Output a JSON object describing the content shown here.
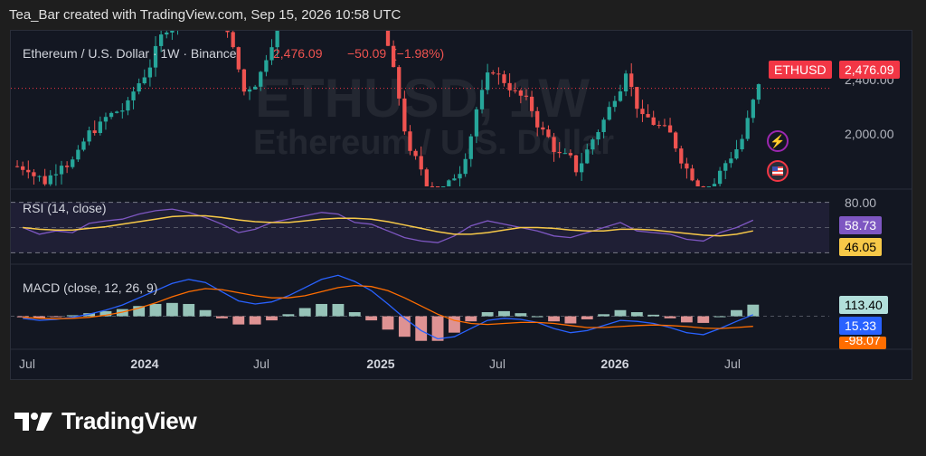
{
  "header": {
    "attribution": "Tea_Bar created with TradingView.com, Sep 15, 2026 10:58 UTC"
  },
  "legend": {
    "symbol_line": "Ethereum / U.S. Dollar · 1W · Binance",
    "price": "2,476.09",
    "change": "−50.09",
    "change_pct": "(−1.98%)"
  },
  "watermark": {
    "ticker": "ETHUSD, 1W",
    "name": "Ethereum / U.S. Dollar"
  },
  "price_pane": {
    "symbol_tag": "ETHUSD",
    "last_price_tag": "2,476.09",
    "y_labels": [
      "2,400.00",
      "2,000.00"
    ]
  },
  "rsi_pane": {
    "title": "RSI (14, close)",
    "level_label": "80.00",
    "rsi_value": "58.73",
    "ma_value": "46.05"
  },
  "macd_pane": {
    "title": "MACD (close, 12, 26, 9)",
    "hist_value": "113.40",
    "macd_value": "15.33",
    "signal_value": "-98.07"
  },
  "x_axis": [
    {
      "label": "Jul",
      "bold": false
    },
    {
      "label": "2024",
      "bold": true
    },
    {
      "label": "Jul",
      "bold": false
    },
    {
      "label": "2025",
      "bold": true
    },
    {
      "label": "Jul",
      "bold": false
    },
    {
      "label": "2026",
      "bold": true
    },
    {
      "label": "Jul",
      "bold": false
    }
  ],
  "footer": {
    "brand": "TradingView"
  },
  "colors": {
    "up": "#26a69a",
    "down": "#ef5350",
    "rsi": "#7e57c2",
    "rsi_ma": "#f7c948",
    "macd": "#2962ff",
    "signal": "#ff6d00",
    "hist_pos": "#a5d6c9",
    "hist_neg": "#f5a0a0"
  },
  "chart_data": {
    "type": "candlestick",
    "title": "Ethereum / U.S. Dollar · 1W · Binance",
    "x_ticks": [
      "Jul",
      "2024",
      "Jul",
      "2025",
      "Jul",
      "2026",
      "Jul"
    ],
    "price_last": 2476.09,
    "price_axis_ticks": [
      2000,
      2400
    ],
    "rsi": {
      "length": 14,
      "value": 58.73,
      "ma": 46.05,
      "upper_band": 80
    },
    "macd": {
      "fast": 12,
      "slow": 26,
      "signal": 9,
      "histogram": 113.4,
      "macd": 15.33,
      "signal_value": -98.07
    },
    "close_series": [
      1820,
      1700,
      1870,
      1900,
      2150,
      2250,
      2320,
      2600,
      2900,
      3150,
      3450,
      3600,
      3000,
      2450,
      2600,
      3050,
      3400,
      3700,
      4000,
      3900,
      3300,
      3200,
      2600,
      1900,
      1700,
      1550,
      1800,
      2300,
      2650,
      2500,
      2350,
      2100,
      1900,
      1800,
      2050,
      2300,
      2650,
      2200,
      2150,
      2000,
      1750,
      1600,
      1850,
      2050,
      2480
    ],
    "rsi_series": [
      50,
      42,
      46,
      44,
      55,
      58,
      60,
      66,
      70,
      72,
      68,
      62,
      54,
      44,
      48,
      56,
      60,
      64,
      68,
      66,
      56,
      54,
      46,
      38,
      34,
      32,
      40,
      52,
      58,
      54,
      50,
      46,
      40,
      38,
      44,
      50,
      56,
      46,
      44,
      42,
      36,
      34,
      44,
      50,
      58.73
    ],
    "rsi_ma_series": [
      50,
      48,
      47,
      47,
      49,
      51,
      54,
      57,
      60,
      63,
      64,
      64,
      62,
      59,
      57,
      56,
      56,
      58,
      60,
      61,
      61,
      60,
      57,
      53,
      49,
      45,
      42,
      42,
      44,
      47,
      50,
      50,
      49,
      47,
      46,
      46,
      48,
      48,
      47,
      45,
      43,
      41,
      40,
      42,
      46.05
    ],
    "macd_series": [
      -20,
      -40,
      -30,
      -10,
      20,
      60,
      110,
      180,
      250,
      320,
      360,
      330,
      240,
      150,
      120,
      140,
      200,
      280,
      360,
      400,
      340,
      250,
      120,
      -20,
      -140,
      -220,
      -200,
      -120,
      -40,
      -20,
      -30,
      -60,
      -120,
      -160,
      -140,
      -90,
      -40,
      -50,
      -70,
      -110,
      -160,
      -180,
      -120,
      -50,
      15.33
    ],
    "signal_series": [
      -10,
      -20,
      -25,
      -20,
      -10,
      10,
      40,
      80,
      130,
      190,
      240,
      270,
      260,
      230,
      200,
      180,
      180,
      200,
      240,
      280,
      300,
      290,
      250,
      180,
      100,
      20,
      -40,
      -70,
      -80,
      -70,
      -60,
      -60,
      -70,
      -90,
      -110,
      -110,
      -100,
      -90,
      -85,
      -90,
      -100,
      -115,
      -120,
      -110,
      -98.07
    ]
  }
}
